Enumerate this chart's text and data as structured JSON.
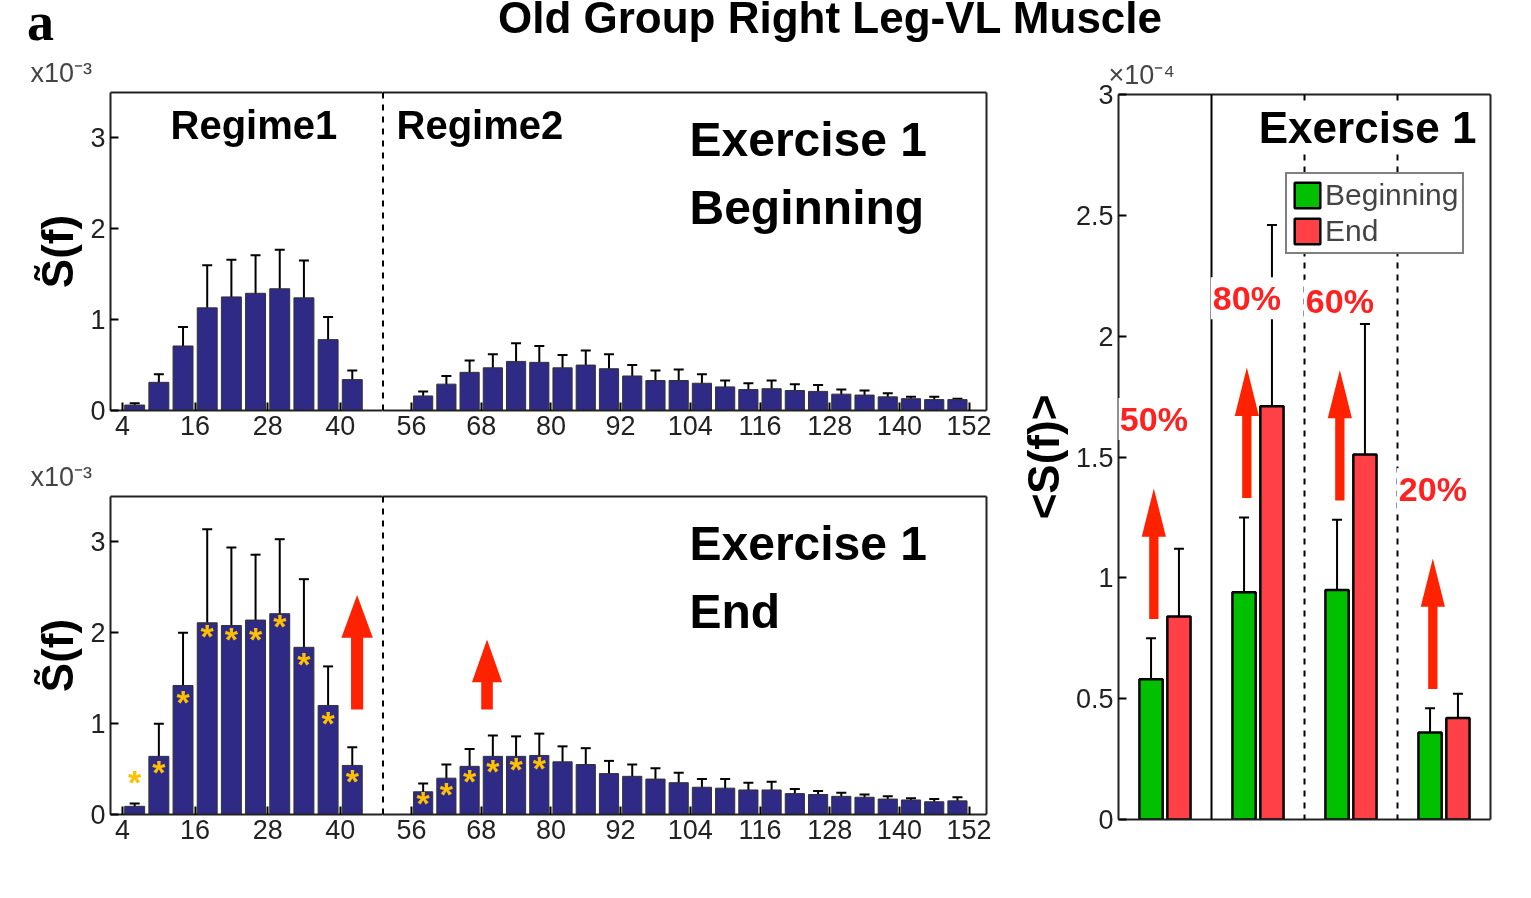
{
  "chart_data": [
    {
      "type": "bar",
      "ylabel": "S̃(f)",
      "color": "#2e2a85",
      "grid": false,
      "x": [
        6,
        10,
        14,
        18,
        22,
        26,
        30,
        34,
        38,
        42
      ],
      "values": [
        0.06,
        0.31,
        0.71,
        1.13,
        1.25,
        1.29,
        1.34,
        1.24,
        0.78,
        0.34
      ],
      "errors": [
        0.02,
        0.09,
        0.21,
        0.47,
        0.41,
        0.42,
        0.43,
        0.41,
        0.25,
        0.1
      ],
      "xlim": [
        2,
        47
      ],
      "xticks": [
        4,
        16,
        28,
        40
      ],
      "ylim": [
        0,
        3.5
      ],
      "yticks": [
        0,
        1,
        2,
        3
      ],
      "annotations": [
        "a",
        "x10⁻³",
        "Regime1"
      ]
    },
    {
      "type": "bar",
      "title": "Old Group Right Leg-VL Muscle",
      "color": "#2e2a85",
      "grid": false,
      "tick_labels": "x",
      "x": [
        58,
        62,
        66,
        70,
        74,
        78,
        82,
        86,
        90,
        94,
        98,
        102,
        106,
        110,
        114,
        118,
        122,
        126,
        130,
        134,
        138,
        142,
        146,
        150
      ],
      "values": [
        0.16,
        0.29,
        0.42,
        0.47,
        0.54,
        0.53,
        0.47,
        0.5,
        0.46,
        0.38,
        0.33,
        0.33,
        0.3,
        0.26,
        0.23,
        0.24,
        0.22,
        0.21,
        0.18,
        0.17,
        0.15,
        0.13,
        0.12,
        0.12
      ],
      "errors": [
        0.05,
        0.09,
        0.13,
        0.15,
        0.2,
        0.18,
        0.14,
        0.16,
        0.16,
        0.12,
        0.11,
        0.12,
        0.1,
        0.07,
        0.07,
        0.09,
        0.07,
        0.07,
        0.05,
        0.05,
        0.04,
        0.02,
        0.03,
        0.01
      ],
      "xlim": [
        51,
        155
      ],
      "xticks": [
        56,
        68,
        80,
        92,
        104,
        116,
        128,
        140,
        152
      ],
      "ylim": [
        0,
        3.5
      ],
      "yticks": [
        0,
        1,
        2,
        3
      ],
      "annotations": [
        "Regime2",
        "Exercise 1\nBeginning"
      ]
    },
    {
      "type": "bar",
      "ylabel": "S̃(f)",
      "color": "#2e2a85",
      "grid": false,
      "x": [
        6,
        10,
        14,
        18,
        22,
        26,
        30,
        34,
        38,
        42
      ],
      "values": [
        0.09,
        0.64,
        1.42,
        2.11,
        2.08,
        2.14,
        2.21,
        1.84,
        1.2,
        0.54
      ],
      "errors": [
        0.03,
        0.36,
        0.58,
        1.03,
        0.86,
        0.72,
        0.82,
        0.75,
        0.43,
        0.2
      ],
      "xlim": [
        2,
        47
      ],
      "xticks": [
        4,
        16,
        28,
        40
      ],
      "ylim": [
        0,
        3.5
      ],
      "yticks": [
        0,
        1,
        2,
        3
      ],
      "annotations": [
        "x10⁻³",
        {
          "text": "*",
          "x": 6,
          "y": 0.12
        },
        {
          "text": "*",
          "x": 10,
          "y": 0.47
        },
        {
          "text": "*",
          "x": 14,
          "y": 1.24
        },
        {
          "text": "*",
          "x": 18,
          "y": 1.96
        },
        {
          "text": "*",
          "x": 22,
          "y": 1.93
        },
        {
          "text": "*",
          "x": 26,
          "y": 1.93
        },
        {
          "text": "*",
          "x": 30,
          "y": 2.07
        },
        {
          "text": "*",
          "x": 34,
          "y": 1.66
        },
        {
          "text": "*",
          "x": 38,
          "y": 1.01
        },
        {
          "text": "*",
          "x": 42,
          "y": 0.37
        }
      ]
    },
    {
      "type": "bar",
      "color": "#2e2a85",
      "grid": false,
      "tick_labels": "x",
      "x": [
        58,
        62,
        66,
        70,
        74,
        78,
        82,
        86,
        90,
        94,
        98,
        102,
        106,
        110,
        114,
        118,
        122,
        126,
        130,
        134,
        138,
        142,
        146,
        150
      ],
      "values": [
        0.25,
        0.4,
        0.53,
        0.64,
        0.64,
        0.65,
        0.58,
        0.55,
        0.45,
        0.42,
        0.39,
        0.35,
        0.3,
        0.29,
        0.27,
        0.27,
        0.23,
        0.22,
        0.2,
        0.19,
        0.17,
        0.16,
        0.14,
        0.15
      ],
      "errors": [
        0.09,
        0.15,
        0.19,
        0.23,
        0.22,
        0.24,
        0.17,
        0.18,
        0.14,
        0.13,
        0.12,
        0.11,
        0.09,
        0.1,
        0.08,
        0.09,
        0.05,
        0.04,
        0.04,
        0.03,
        0.03,
        0.02,
        0.03,
        0.04
      ],
      "xlim": [
        51,
        155
      ],
      "xticks": [
        56,
        68,
        80,
        92,
        104,
        116,
        128,
        140,
        152
      ],
      "ylim": [
        0,
        3.5
      ],
      "yticks": [
        0,
        1,
        2,
        3
      ],
      "annotations": [
        "Exercise 1\nEnd",
        {
          "text": "*",
          "x": 58,
          "y": 0.13
        },
        {
          "text": "*",
          "x": 62,
          "y": 0.23
        },
        {
          "text": "*",
          "x": 66,
          "y": 0.37
        },
        {
          "text": "*",
          "x": 70,
          "y": 0.48
        },
        {
          "text": "*",
          "x": 74,
          "y": 0.5
        },
        {
          "text": "*",
          "x": 78,
          "y": 0.51
        }
      ]
    },
    {
      "type": "bar",
      "title": "Exercise 1",
      "ylabel": "<S(f)>",
      "grid": false,
      "legend": "top right",
      "categories": [
        null,
        null,
        null,
        null
      ],
      "series": [
        {
          "name": "Beginning",
          "color": "#00c000",
          "values": [
            0.58,
            0.94,
            0.95,
            0.36
          ],
          "errors": [
            0.17,
            0.31,
            0.29,
            0.1
          ]
        },
        {
          "name": "End",
          "color": "#ff4046",
          "values": [
            0.84,
            1.71,
            1.51,
            0.42
          ],
          "errors": [
            0.28,
            0.75,
            0.54,
            0.1
          ]
        }
      ],
      "ylim": [
        0,
        3
      ],
      "yticks": [
        0,
        0.5,
        1,
        1.5,
        2,
        2.5,
        3
      ],
      "annotations": [
        "×10⁻⁴",
        "50%",
        "80%",
        "60%",
        "20%"
      ]
    }
  ]
}
